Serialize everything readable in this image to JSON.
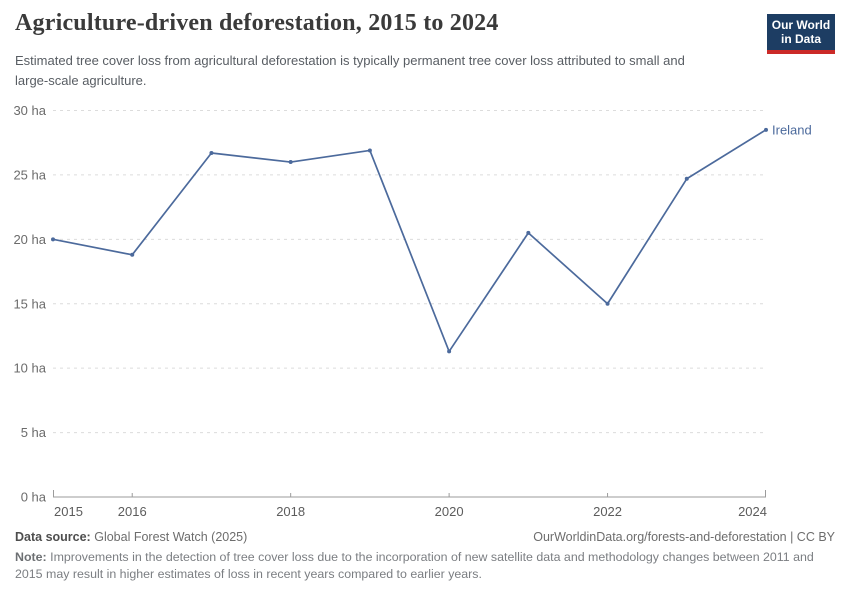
{
  "header": {
    "title": "Agriculture-driven deforestation, 2015 to 2024",
    "subtitle": "Estimated tree cover loss from agricultural deforestation is typically permanent tree cover loss attributed to small and large-scale agriculture.",
    "logo": {
      "line1": "Our World",
      "line2": "in Data"
    }
  },
  "chart_data": {
    "type": "line",
    "title": "Agriculture-driven deforestation, 2015 to 2024",
    "x": [
      2015,
      2016,
      2017,
      2018,
      2019,
      2020,
      2021,
      2022,
      2023,
      2024
    ],
    "series": [
      {
        "name": "Ireland",
        "color": "#4c6a9c",
        "values": [
          20,
          18.8,
          26.7,
          26,
          26.9,
          11.3,
          20.5,
          15,
          24.7,
          28.5
        ]
      }
    ],
    "xlim": [
      2015,
      2024
    ],
    "ylim": [
      0,
      30
    ],
    "x_ticks": [
      2015,
      2016,
      2018,
      2020,
      2022,
      2024
    ],
    "y_ticks": [
      0,
      5,
      10,
      15,
      20,
      25,
      30
    ],
    "y_tick_suffix": " ha",
    "unit": "ha",
    "grid": "horizontal-dashed",
    "legend": "end-of-line-label"
  },
  "footer": {
    "source_label": "Data source:",
    "source_text": "Global Forest Watch (2025)",
    "attribution": "OurWorldinData.org/forests-and-deforestation | CC BY",
    "note_label": "Note:",
    "note_text": "Improvements in the detection of tree cover loss due to the incorporation of new satellite data and methodology changes between 2011 and 2015 may result in higher estimates of loss in recent years compared to earlier years."
  },
  "colors": {
    "series": "#4c6a9c",
    "logo_bg": "#1d3d63",
    "logo_accent": "#cb2a28",
    "gridline": "#dcdcdc",
    "axis": "#9b9b9b",
    "title_text": "#3a3a3a",
    "subtitle_text": "#585d63"
  }
}
